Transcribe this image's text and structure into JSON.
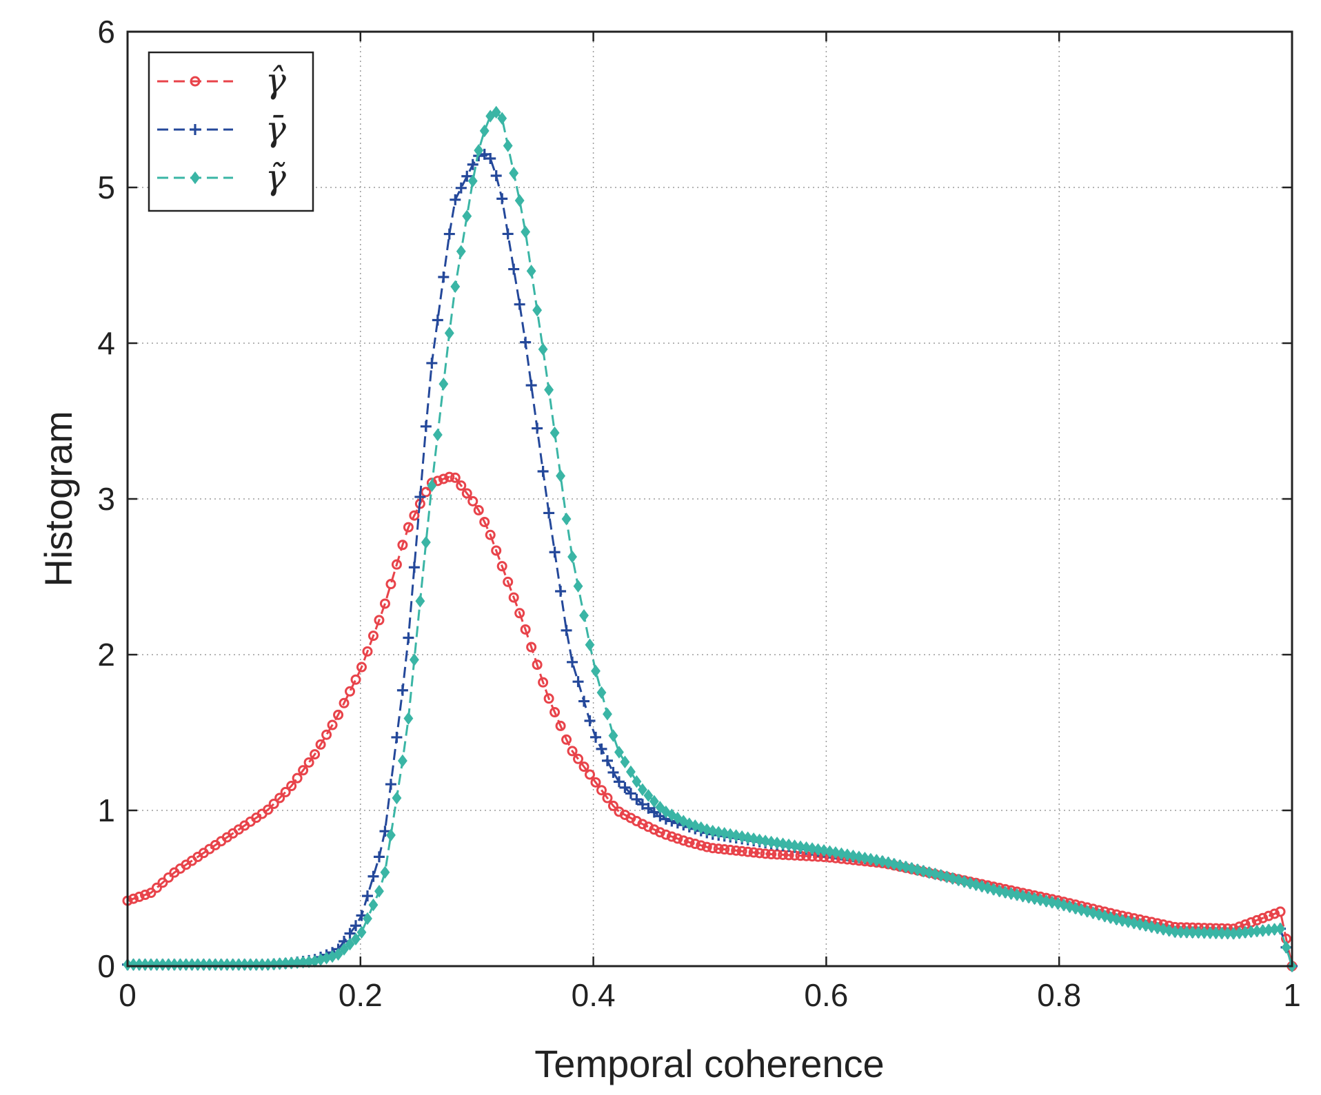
{
  "chart_data": {
    "type": "line",
    "title": "",
    "xlabel": "Temporal coherence",
    "ylabel": "Histogram",
    "xlim": [
      0,
      1
    ],
    "ylim": [
      0,
      6
    ],
    "xticks": [
      "0",
      "0.2",
      "0.4",
      "0.6",
      "0.8",
      "1"
    ],
    "yticks": [
      "0",
      "1",
      "2",
      "3",
      "4",
      "5",
      "6"
    ],
    "grid": true,
    "legend_position": "top-left",
    "x": [
      0,
      0.02,
      0.04,
      0.06,
      0.08,
      0.1,
      0.12,
      0.14,
      0.16,
      0.18,
      0.2,
      0.22,
      0.24,
      0.26,
      0.28,
      0.3,
      0.31,
      0.32,
      0.34,
      0.36,
      0.38,
      0.4,
      0.42,
      0.44,
      0.46,
      0.48,
      0.5,
      0.55,
      0.6,
      0.65,
      0.7,
      0.75,
      0.8,
      0.85,
      0.9,
      0.95,
      0.99,
      1.0
    ],
    "series": [
      {
        "name": "γ̂",
        "color": "#e8434a",
        "marker": "circle",
        "values": [
          0.42,
          0.47,
          0.6,
          0.7,
          0.8,
          0.9,
          1.0,
          1.15,
          1.35,
          1.6,
          1.9,
          2.3,
          2.8,
          3.1,
          3.15,
          2.95,
          2.8,
          2.6,
          2.2,
          1.75,
          1.4,
          1.2,
          1.0,
          0.92,
          0.85,
          0.8,
          0.76,
          0.72,
          0.7,
          0.66,
          0.58,
          0.5,
          0.42,
          0.33,
          0.25,
          0.24,
          0.35,
          0.0
        ]
      },
      {
        "name": "γ̄",
        "color": "#24489a",
        "marker": "plus",
        "values": [
          0.01,
          0.01,
          0.01,
          0.01,
          0.01,
          0.01,
          0.01,
          0.02,
          0.04,
          0.1,
          0.3,
          0.8,
          2.0,
          3.8,
          4.9,
          5.2,
          5.22,
          5.0,
          4.1,
          3.0,
          2.0,
          1.5,
          1.2,
          1.05,
          0.95,
          0.9,
          0.85,
          0.79,
          0.73,
          0.67,
          0.58,
          0.48,
          0.4,
          0.3,
          0.22,
          0.21,
          0.24,
          0.0
        ]
      },
      {
        "name": "γ̃",
        "color": "#3ab5a5",
        "marker": "diamond",
        "values": [
          0.01,
          0.01,
          0.01,
          0.01,
          0.01,
          0.01,
          0.01,
          0.02,
          0.03,
          0.07,
          0.2,
          0.55,
          1.5,
          3.0,
          4.3,
          5.2,
          5.45,
          5.5,
          4.8,
          3.8,
          2.7,
          1.95,
          1.4,
          1.15,
          1.0,
          0.92,
          0.87,
          0.8,
          0.74,
          0.67,
          0.58,
          0.48,
          0.4,
          0.3,
          0.22,
          0.21,
          0.24,
          0.0
        ]
      }
    ]
  }
}
